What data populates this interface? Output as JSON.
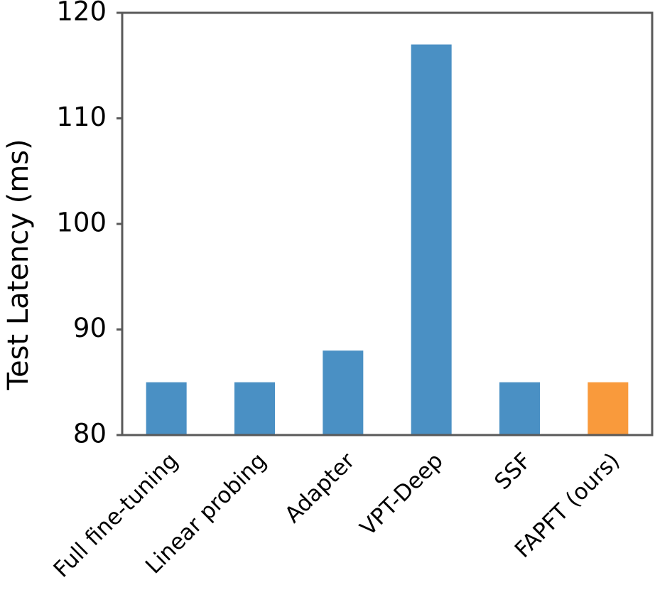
{
  "chart_data": {
    "type": "bar",
    "y_label": "Test Latency (ms)",
    "categories": [
      "Full fine-tuning",
      "Linear probing",
      "Adapter",
      "VPT-Deep",
      "SSF",
      "FAPFT (ours)"
    ],
    "values": [
      85,
      85,
      88,
      117,
      85,
      85
    ],
    "colors": [
      "#4a90c4",
      "#4a90c4",
      "#4a90c4",
      "#4a90c4",
      "#4a90c4",
      "#f99a3c"
    ],
    "ylim": [
      80,
      120
    ],
    "yticks": [
      80,
      90,
      100,
      110,
      120
    ],
    "grid": false
  }
}
